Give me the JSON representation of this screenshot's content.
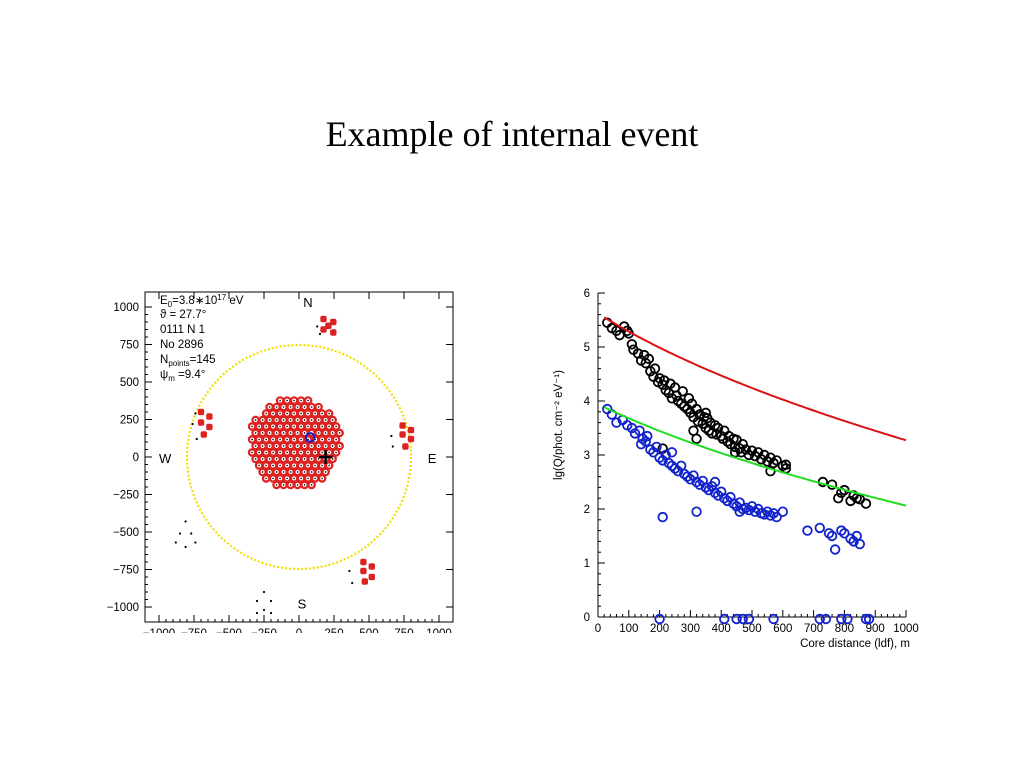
{
  "slide": {
    "title": "Example of internal event"
  },
  "colors": {
    "detector_red": "#dd2222",
    "circle_yellow": "#f0e000",
    "fit_red": "#dd1111",
    "fit_green": "#22dd22",
    "points_blue": "#1122cc",
    "points_black": "#000000"
  },
  "chart_data": [
    {
      "type": "scatter",
      "name": "Shower core map",
      "xlim": [
        -1100,
        1100
      ],
      "ylim": [
        -1100,
        1100
      ],
      "xticks": [
        "−1000",
        "−750",
        "−500",
        "−250",
        "0",
        "250",
        "500",
        "750",
        "1000"
      ],
      "yticks": [
        "1000",
        "750",
        "500",
        "250",
        "0",
        "−250",
        "−500",
        "−750",
        "−1000"
      ],
      "tick_values": [
        -1000,
        -750,
        -500,
        -250,
        0,
        250,
        500,
        750,
        1000
      ],
      "directions": {
        "north": "N",
        "south": "S",
        "east": "E",
        "west": "W"
      },
      "info": {
        "energy_label": "E",
        "energy_sub": "0",
        "energy_value": "=3.8∗10",
        "energy_exp": "17",
        "energy_unit": " eV",
        "zenith": "ϑ = 27.7°",
        "run": "0111 N 1",
        "number": "No 2896",
        "npoints_label": "N",
        "npoints_sub": "points",
        "npoints_value": "=145",
        "psi_label": "ψ",
        "psi_sub": "m",
        "psi_value": " =9.4°"
      },
      "array_circle": {
        "center": [
          0,
          0
        ],
        "radius": 800
      },
      "core": {
        "x": 190,
        "y": 0
      },
      "array_center_grid": {
        "spacing": 50,
        "radius": 330,
        "cx": -30,
        "cy": 90
      },
      "outer_clusters": [
        {
          "label": "north",
          "points": [
            [
              175,
              920
            ],
            [
              245,
              900
            ],
            [
              175,
              850
            ],
            [
              245,
              830
            ],
            [
              210,
              875
            ]
          ]
        },
        {
          "label": "west",
          "points": [
            [
              -700,
              300
            ],
            [
              -640,
              270
            ],
            [
              -700,
              230
            ],
            [
              -640,
              200
            ],
            [
              -680,
              150
            ]
          ]
        },
        {
          "label": "east",
          "points": [
            [
              740,
              210
            ],
            [
              800,
              180
            ],
            [
              740,
              150
            ],
            [
              800,
              120
            ],
            [
              760,
              70
            ]
          ]
        },
        {
          "label": "south-east",
          "points": [
            [
              460,
              -700
            ],
            [
              520,
              -730
            ],
            [
              460,
              -760
            ],
            [
              520,
              -800
            ],
            [
              470,
              -830
            ]
          ]
        }
      ],
      "black_dot_clusters": [
        [
          [
            -810,
            -430
          ],
          [
            -850,
            -510
          ],
          [
            -770,
            -510
          ],
          [
            -810,
            -600
          ],
          [
            -880,
            -570
          ],
          [
            -740,
            -570
          ]
        ],
        [
          [
            -250,
            -900
          ],
          [
            -300,
            -960
          ],
          [
            -200,
            -960
          ],
          [
            -250,
            -1020
          ],
          [
            -300,
            -1040
          ],
          [
            -200,
            -1040
          ]
        ],
        [
          [
            -740,
            290
          ],
          [
            -760,
            220
          ],
          [
            -730,
            120
          ]
        ],
        [
          [
            660,
            140
          ],
          [
            670,
            70
          ]
        ],
        [
          [
            360,
            -760
          ],
          [
            380,
            -840
          ]
        ],
        [
          [
            130,
            870
          ],
          [
            150,
            820
          ]
        ]
      ]
    },
    {
      "type": "scatter",
      "name": "Lateral distribution",
      "xlabel": "Core distance (ldf), m",
      "ylabel": "lg(Q/phot. cm⁻² eV⁻¹)",
      "xlim": [
        0,
        1000
      ],
      "ylim": [
        0,
        6
      ],
      "xticks": [
        0,
        100,
        200,
        300,
        400,
        500,
        600,
        700,
        800,
        900,
        1000
      ],
      "yticks": [
        0,
        1,
        2,
        3,
        4,
        5,
        6
      ],
      "series": [
        {
          "color": "#000000",
          "points": [
            [
              30,
              5.45
            ],
            [
              45,
              5.35
            ],
            [
              60,
              5.3
            ],
            [
              70,
              5.22
            ],
            [
              85,
              5.38
            ],
            [
              95,
              5.3
            ],
            [
              100,
              5.25
            ],
            [
              110,
              5.05
            ],
            [
              115,
              4.95
            ],
            [
              130,
              4.88
            ],
            [
              140,
              4.75
            ],
            [
              150,
              4.85
            ],
            [
              155,
              4.7
            ],
            [
              165,
              4.78
            ],
            [
              170,
              4.55
            ],
            [
              180,
              4.45
            ],
            [
              185,
              4.6
            ],
            [
              195,
              4.35
            ],
            [
              200,
              4.42
            ],
            [
              210,
              4.3
            ],
            [
              215,
              4.38
            ],
            [
              220,
              4.2
            ],
            [
              230,
              4.15
            ],
            [
              235,
              4.32
            ],
            [
              240,
              4.05
            ],
            [
              250,
              4.25
            ],
            [
              255,
              4.1
            ],
            [
              260,
              4.0
            ],
            [
              270,
              3.95
            ],
            [
              275,
              4.18
            ],
            [
              280,
              3.9
            ],
            [
              290,
              3.85
            ],
            [
              295,
              4.05
            ],
            [
              300,
              3.78
            ],
            [
              305,
              3.95
            ],
            [
              310,
              3.7
            ],
            [
              320,
              3.85
            ],
            [
              325,
              3.62
            ],
            [
              330,
              3.75
            ],
            [
              340,
              3.58
            ],
            [
              345,
              3.7
            ],
            [
              350,
              3.5
            ],
            [
              355,
              3.68
            ],
            [
              360,
              3.45
            ],
            [
              365,
              3.6
            ],
            [
              370,
              3.4
            ],
            [
              380,
              3.55
            ],
            [
              385,
              3.38
            ],
            [
              390,
              3.5
            ],
            [
              400,
              3.35
            ],
            [
              405,
              3.3
            ],
            [
              410,
              3.45
            ],
            [
              420,
              3.25
            ],
            [
              425,
              3.35
            ],
            [
              430,
              3.2
            ],
            [
              440,
              3.3
            ],
            [
              445,
              3.15
            ],
            [
              450,
              3.28
            ],
            [
              460,
              3.12
            ],
            [
              465,
              3.05
            ],
            [
              470,
              3.2
            ],
            [
              480,
              3.1
            ],
            [
              490,
              3.0
            ],
            [
              500,
              3.08
            ],
            [
              510,
              2.98
            ],
            [
              520,
              3.05
            ],
            [
              530,
              2.92
            ],
            [
              540,
              3.0
            ],
            [
              550,
              2.88
            ],
            [
              560,
              2.95
            ],
            [
              570,
              2.85
            ],
            [
              580,
              2.9
            ],
            [
              600,
              2.8
            ],
            [
              610,
              2.75
            ],
            [
              210,
              3.12
            ],
            [
              310,
              3.45
            ],
            [
              320,
              3.3
            ],
            [
              350,
              3.78
            ],
            [
              445,
              3.05
            ],
            [
              560,
              2.7
            ],
            [
              610,
              2.82
            ],
            [
              730,
              2.5
            ],
            [
              760,
              2.45
            ],
            [
              780,
              2.2
            ],
            [
              790,
              2.3
            ],
            [
              800,
              2.35
            ],
            [
              820,
              2.15
            ],
            [
              830,
              2.25
            ],
            [
              840,
              2.2
            ],
            [
              850,
              2.18
            ],
            [
              870,
              2.1
            ]
          ]
        },
        {
          "color": "#1122cc",
          "points": [
            [
              30,
              3.85
            ],
            [
              45,
              3.75
            ],
            [
              60,
              3.6
            ],
            [
              80,
              3.65
            ],
            [
              95,
              3.55
            ],
            [
              110,
              3.5
            ],
            [
              120,
              3.4
            ],
            [
              135,
              3.45
            ],
            [
              145,
              3.3
            ],
            [
              155,
              3.25
            ],
            [
              160,
              3.35
            ],
            [
              170,
              3.1
            ],
            [
              180,
              3.05
            ],
            [
              190,
              3.15
            ],
            [
              200,
              2.95
            ],
            [
              210,
              2.9
            ],
            [
              220,
              3.0
            ],
            [
              230,
              2.85
            ],
            [
              240,
              2.8
            ],
            [
              250,
              2.75
            ],
            [
              260,
              2.7
            ],
            [
              270,
              2.8
            ],
            [
              280,
              2.65
            ],
            [
              290,
              2.6
            ],
            [
              300,
              2.55
            ],
            [
              310,
              2.62
            ],
            [
              320,
              2.5
            ],
            [
              330,
              2.45
            ],
            [
              340,
              2.52
            ],
            [
              350,
              2.4
            ],
            [
              360,
              2.35
            ],
            [
              370,
              2.42
            ],
            [
              380,
              2.3
            ],
            [
              390,
              2.25
            ],
            [
              400,
              2.32
            ],
            [
              410,
              2.2
            ],
            [
              420,
              2.15
            ],
            [
              430,
              2.22
            ],
            [
              440,
              2.1
            ],
            [
              450,
              2.05
            ],
            [
              460,
              2.12
            ],
            [
              470,
              2.0
            ],
            [
              480,
              2.02
            ],
            [
              490,
              1.98
            ],
            [
              500,
              2.05
            ],
            [
              510,
              1.95
            ],
            [
              520,
              2.0
            ],
            [
              530,
              1.92
            ],
            [
              540,
              1.9
            ],
            [
              550,
              1.95
            ],
            [
              560,
              1.88
            ],
            [
              570,
              1.92
            ],
            [
              580,
              1.85
            ],
            [
              600,
              1.95
            ],
            [
              140,
              3.2
            ],
            [
              240,
              3.05
            ],
            [
              210,
              1.85
            ],
            [
              320,
              1.95
            ],
            [
              380,
              2.5
            ],
            [
              460,
              1.95
            ],
            [
              680,
              1.6
            ],
            [
              720,
              1.65
            ],
            [
              750,
              1.55
            ],
            [
              760,
              1.5
            ],
            [
              770,
              1.25
            ],
            [
              790,
              1.6
            ],
            [
              800,
              1.55
            ],
            [
              820,
              1.45
            ],
            [
              830,
              1.4
            ],
            [
              840,
              1.5
            ],
            [
              850,
              1.35
            ],
            [
              200,
              0
            ],
            [
              410,
              0
            ],
            [
              450,
              0
            ],
            [
              470,
              0
            ],
            [
              490,
              0
            ],
            [
              570,
              0
            ],
            [
              720,
              0
            ],
            [
              740,
              0
            ],
            [
              790,
              0
            ],
            [
              810,
              0
            ],
            [
              870,
              0
            ],
            [
              880,
              0
            ]
          ]
        }
      ],
      "fits": [
        {
          "color": "#dd1111",
          "x_from": 20,
          "x_to": 1000,
          "a": 5.62,
          "b": 0.0006,
          "c": 4.1
        },
        {
          "color": "#22dd22",
          "x_from": 20,
          "x_to": 1000,
          "a": 3.94,
          "b": 0.0006,
          "c": 3.0
        }
      ]
    }
  ]
}
